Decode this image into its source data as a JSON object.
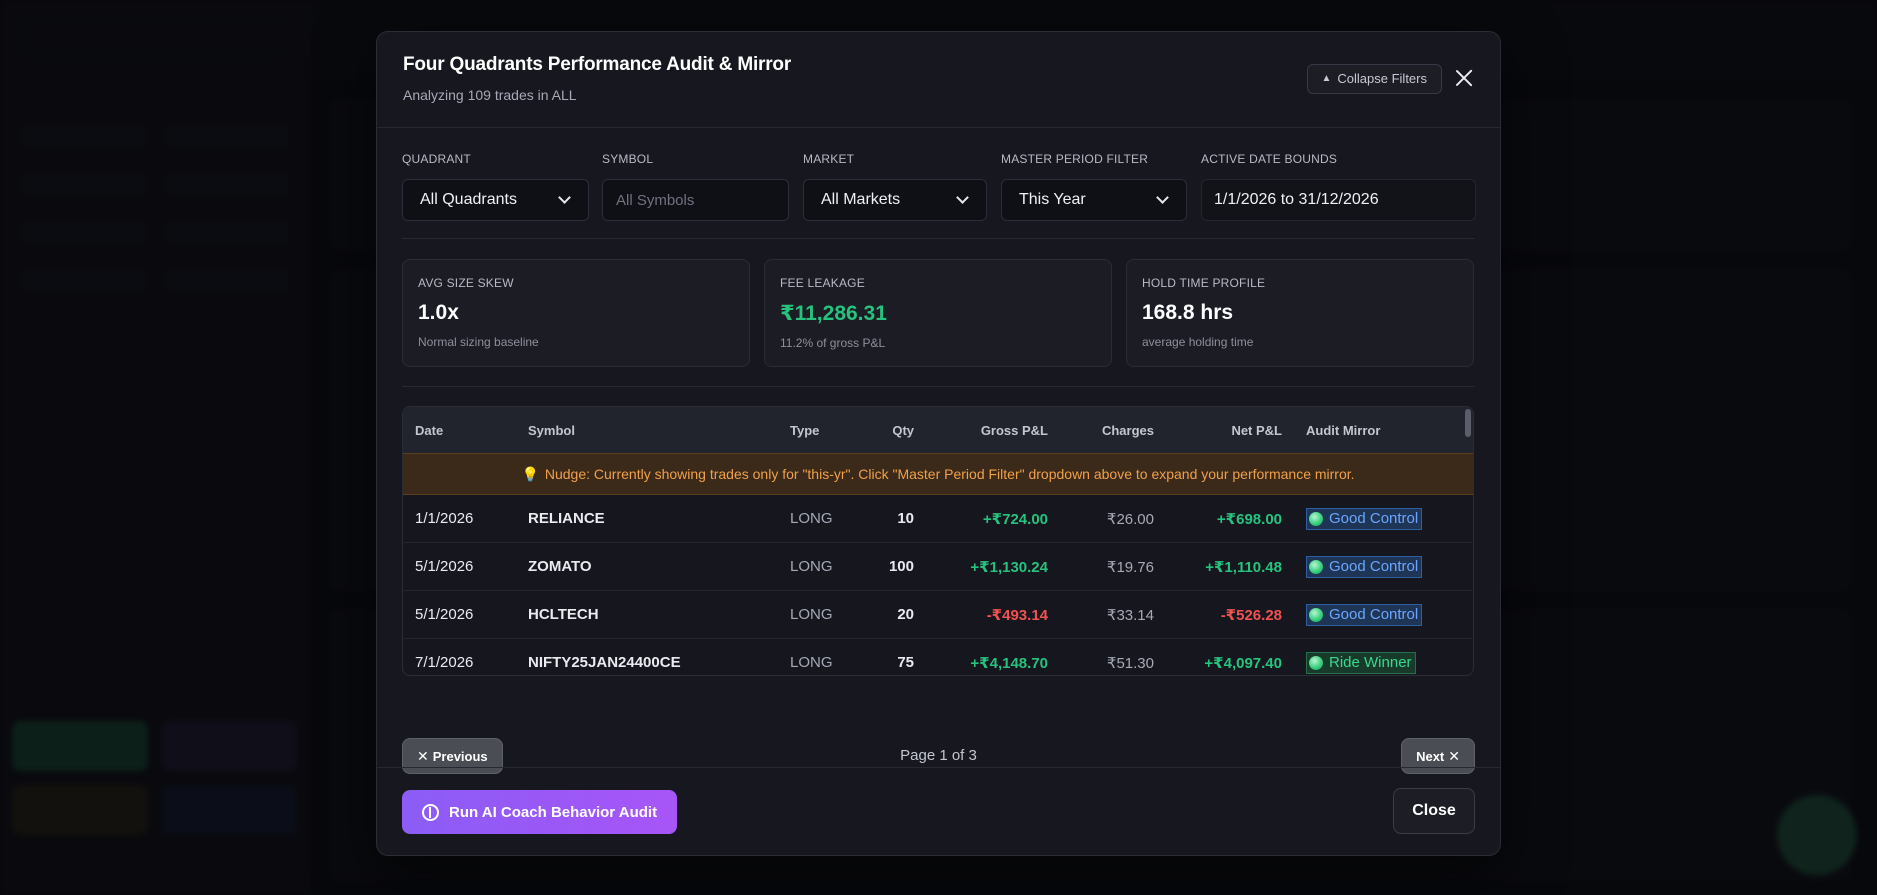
{
  "modal": {
    "title": "Four Quadrants Performance Audit & Mirror",
    "subtitle": "Analyzing 109 trades in ALL",
    "collapse_label": "Collapse Filters"
  },
  "filters": {
    "quadrant": {
      "label": "QUADRANT",
      "value": "All Quadrants"
    },
    "symbol": {
      "label": "SYMBOL",
      "placeholder": "All Symbols"
    },
    "market": {
      "label": "MARKET",
      "value": "All Markets"
    },
    "period": {
      "label": "MASTER PERIOD FILTER",
      "value": "This Year"
    },
    "date_bounds": {
      "label": "ACTIVE DATE BOUNDS",
      "value": "1/1/2026 to 31/12/2026"
    }
  },
  "stats": [
    {
      "label": "AVG SIZE SKEW",
      "value": "1.0x",
      "note": "Normal sizing baseline"
    },
    {
      "label": "FEE LEAKAGE",
      "value": "₹11,286.31",
      "note": "11.2% of gross P&L"
    },
    {
      "label": "HOLD TIME PROFILE",
      "value": "168.8 hrs",
      "note": "average holding time"
    }
  ],
  "table": {
    "headers": [
      "Date",
      "Symbol",
      "Type",
      "Qty",
      "Gross P&L",
      "Charges",
      "Net P&L",
      "Audit Mirror"
    ],
    "nudge": "Nudge: Currently showing trades only for \"this-yr\". Click \"Master Period Filter\" dropdown above to expand your performance mirror.",
    "rows": [
      {
        "date": "1/1/2026",
        "symbol": "RELIANCE",
        "type": "LONG",
        "qty": "10",
        "gross": "+₹724.00",
        "charges": "₹26.00",
        "net": "+₹698.00",
        "audit": "Good Control"
      },
      {
        "date": "5/1/2026",
        "symbol": "ZOMATO",
        "type": "LONG",
        "qty": "100",
        "gross": "+₹1,130.24",
        "charges": "₹19.76",
        "net": "+₹1,110.48",
        "audit": "Good Control"
      },
      {
        "date": "5/1/2026",
        "symbol": "HCLTECH",
        "type": "LONG",
        "qty": "20",
        "gross": "-₹493.14",
        "charges": "₹33.14",
        "net": "-₹526.28",
        "audit": "Good Control"
      },
      {
        "date": "7/1/2026",
        "symbol": "NIFTY25JAN24400CE",
        "type": "LONG",
        "qty": "75",
        "gross": "+₹4,148.70",
        "charges": "₹51.30",
        "net": "+₹4,097.40",
        "audit": "Ride Winner"
      }
    ]
  },
  "pager": {
    "prev": "Previous",
    "next": "Next",
    "text": "Page 1 of 3"
  },
  "footer": {
    "ai_button": "Run AI Coach Behavior Audit",
    "close_button": "Close"
  },
  "colors": {
    "accent_purple": "#a855f7",
    "positive": "#27c27d",
    "negative": "#f05252",
    "nudge": "#f0a04b"
  }
}
